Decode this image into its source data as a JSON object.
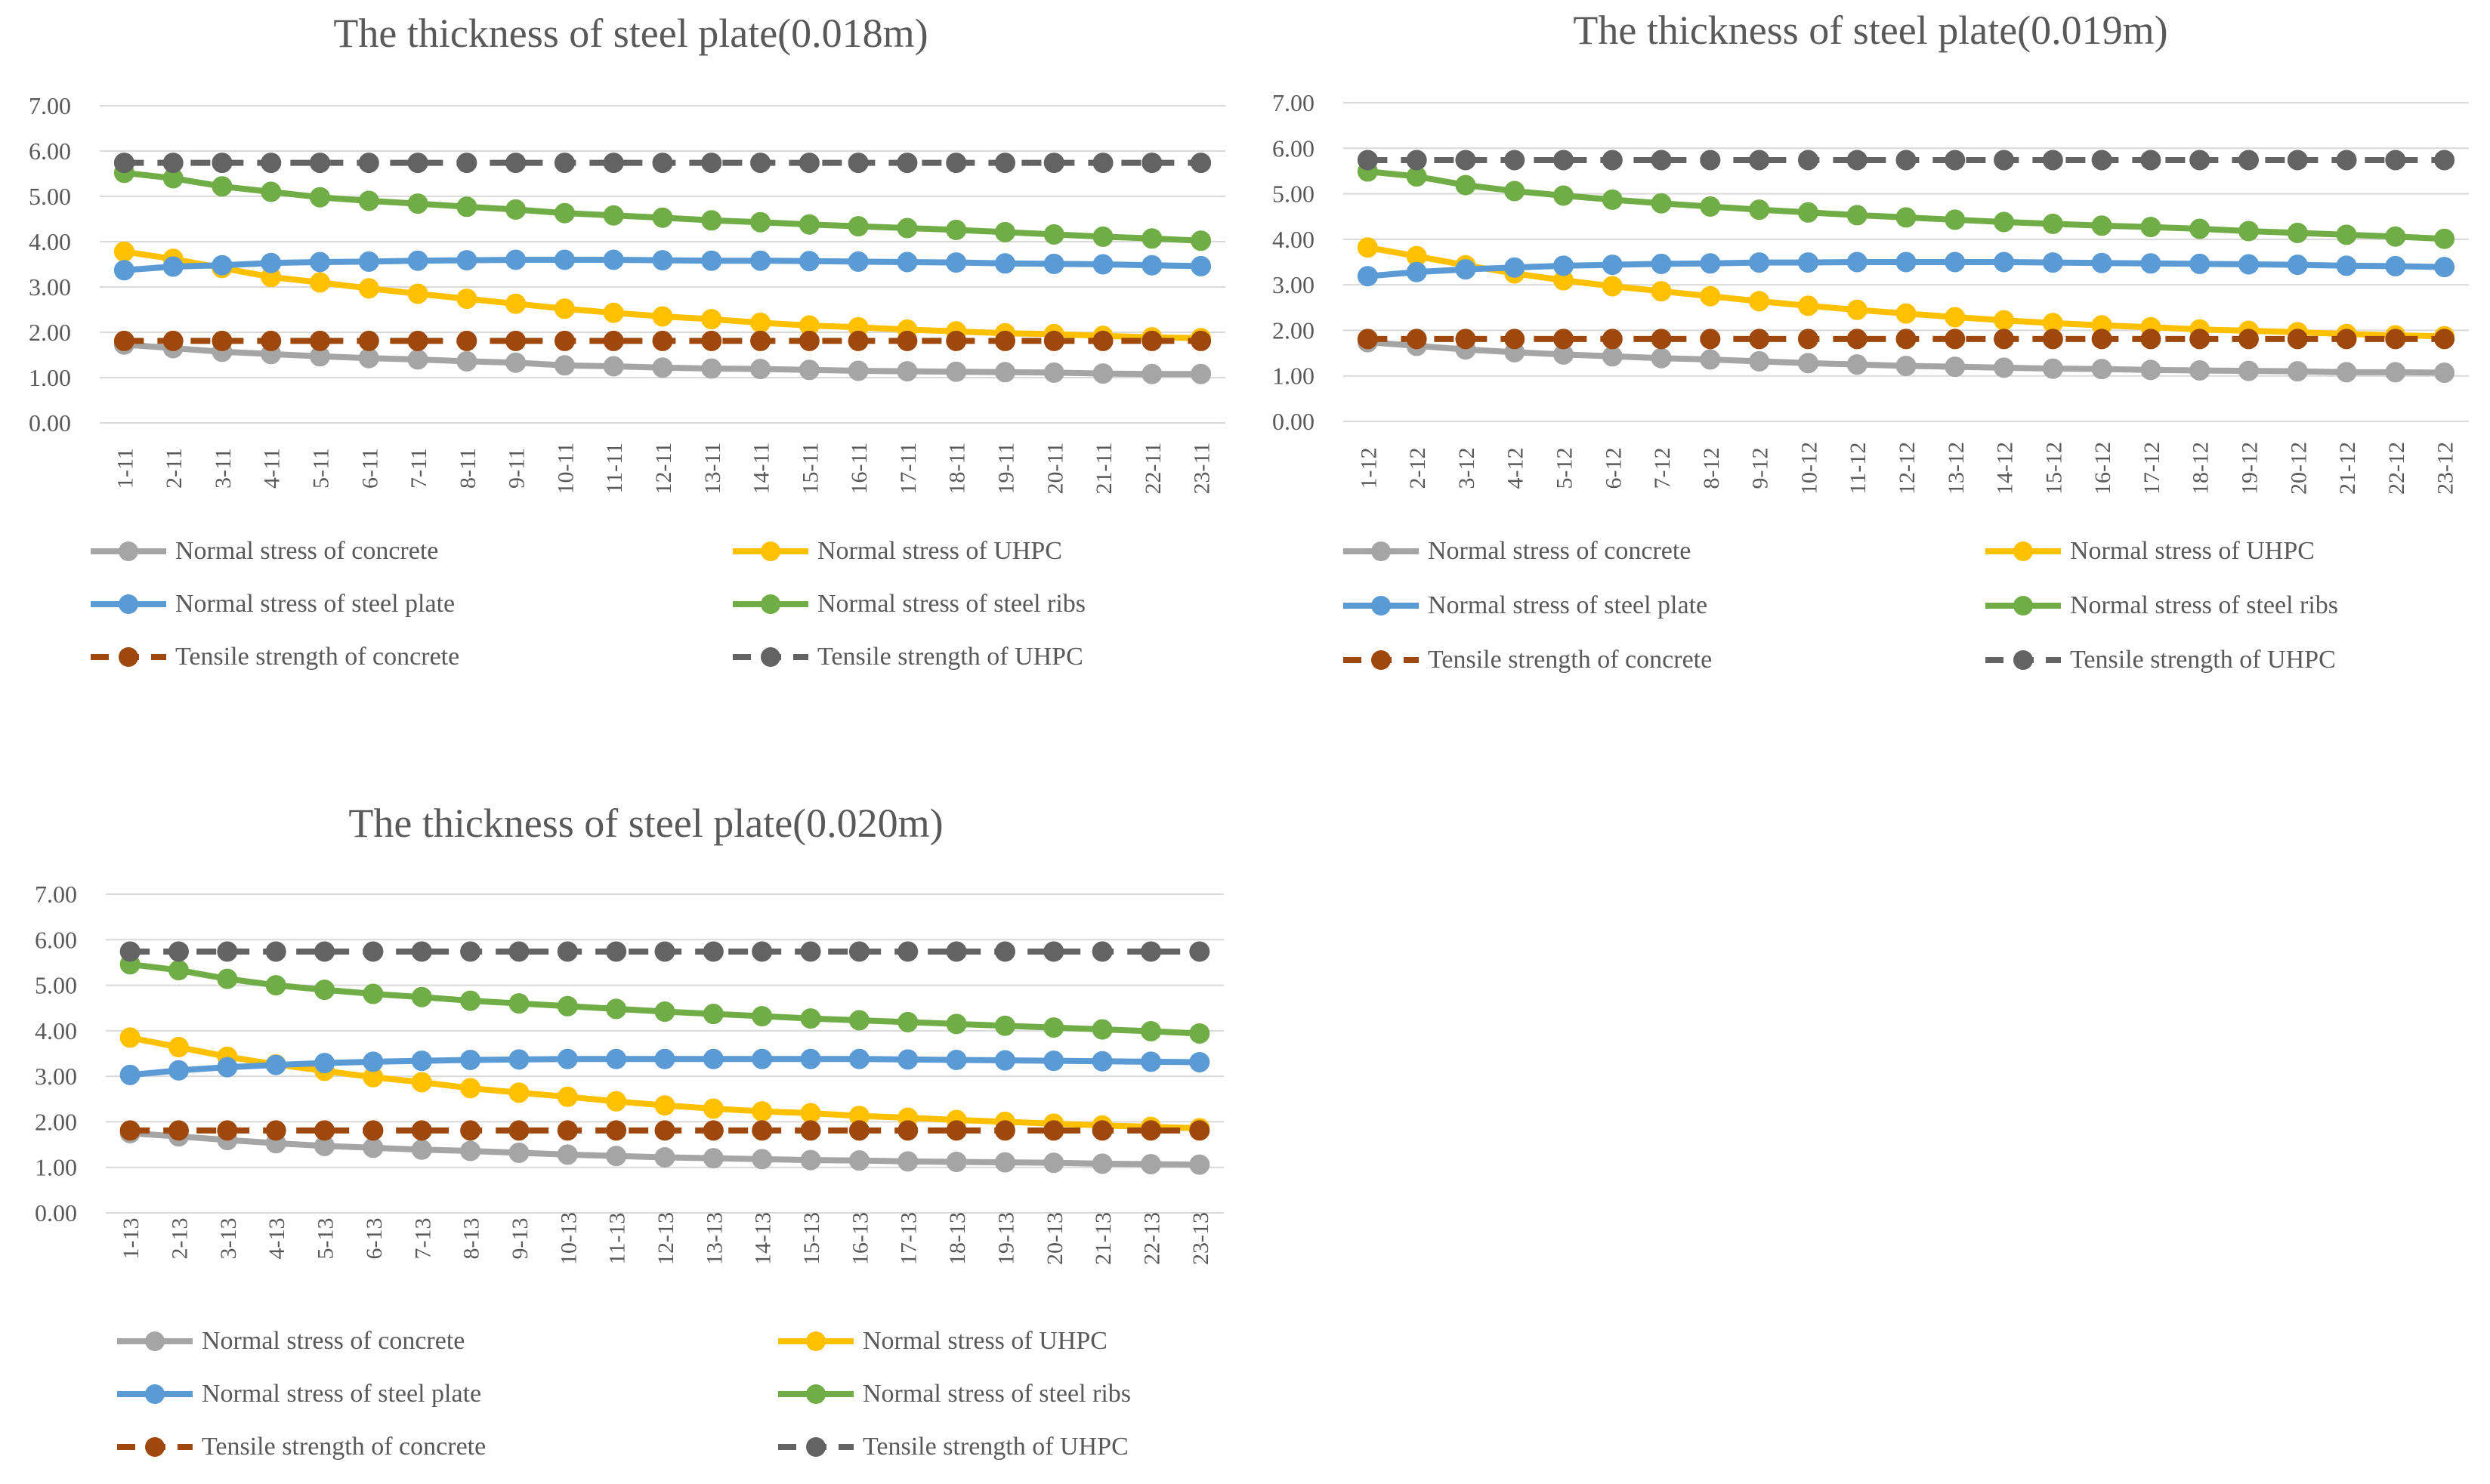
{
  "chart_data": [
    {
      "type": "line",
      "title": "The thickness of steel plate(0.018m)",
      "xlabel": "",
      "ylabel": "",
      "ylim": [
        0,
        7
      ],
      "yticks": [
        "0.00",
        "1.00",
        "2.00",
        "3.00",
        "4.00",
        "5.00",
        "6.00",
        "7.00"
      ],
      "categories": [
        "1-11",
        "2-11",
        "3-11",
        "4-11",
        "5-11",
        "6-11",
        "7-11",
        "8-11",
        "9-11",
        "10-11",
        "11-11",
        "12-11",
        "13-11",
        "14-11",
        "15-11",
        "16-11",
        "17-11",
        "18-11",
        "19-11",
        "20-11",
        "21-11",
        "22-11",
        "23-11"
      ],
      "series": [
        {
          "name": "Normal stress of concrete",
          "color": "#A5A5A5",
          "dash": false,
          "values": [
            1.73,
            1.65,
            1.57,
            1.52,
            1.47,
            1.43,
            1.4,
            1.36,
            1.33,
            1.27,
            1.25,
            1.22,
            1.2,
            1.19,
            1.17,
            1.15,
            1.14,
            1.13,
            1.12,
            1.11,
            1.09,
            1.08,
            1.08
          ]
        },
        {
          "name": "Normal stress of UHPC",
          "color": "#FFC000",
          "dash": false,
          "values": [
            3.78,
            3.62,
            3.42,
            3.22,
            3.1,
            2.97,
            2.85,
            2.74,
            2.63,
            2.52,
            2.43,
            2.35,
            2.29,
            2.21,
            2.15,
            2.11,
            2.06,
            2.02,
            1.98,
            1.96,
            1.92,
            1.89,
            1.87
          ]
        },
        {
          "name": "Normal stress of steel plate",
          "color": "#5B9BD5",
          "dash": false,
          "values": [
            3.37,
            3.45,
            3.48,
            3.53,
            3.55,
            3.56,
            3.58,
            3.59,
            3.6,
            3.6,
            3.6,
            3.59,
            3.58,
            3.58,
            3.57,
            3.56,
            3.55,
            3.54,
            3.52,
            3.51,
            3.5,
            3.48,
            3.46
          ]
        },
        {
          "name": "Normal stress of steel ribs",
          "color": "#70AD47",
          "dash": false,
          "values": [
            5.52,
            5.4,
            5.22,
            5.1,
            4.98,
            4.9,
            4.84,
            4.77,
            4.71,
            4.63,
            4.58,
            4.53,
            4.47,
            4.43,
            4.38,
            4.34,
            4.3,
            4.26,
            4.21,
            4.16,
            4.11,
            4.07,
            4.02
          ]
        },
        {
          "name": "Tensile strength of concrete",
          "color": "#9E480E",
          "dash": true,
          "values": [
            1.81,
            1.81,
            1.81,
            1.81,
            1.81,
            1.81,
            1.81,
            1.81,
            1.81,
            1.81,
            1.81,
            1.81,
            1.81,
            1.81,
            1.81,
            1.81,
            1.81,
            1.81,
            1.81,
            1.81,
            1.81,
            1.81,
            1.81
          ]
        },
        {
          "name": "Tensile strength of UHPC",
          "color": "#636363",
          "dash": true,
          "values": [
            5.74,
            5.74,
            5.74,
            5.74,
            5.74,
            5.74,
            5.74,
            5.74,
            5.74,
            5.74,
            5.74,
            5.74,
            5.74,
            5.74,
            5.74,
            5.74,
            5.74,
            5.74,
            5.74,
            5.74,
            5.74,
            5.74,
            5.74
          ]
        }
      ]
    },
    {
      "type": "line",
      "title": "The thickness of steel plate(0.019m)",
      "xlabel": "",
      "ylabel": "",
      "ylim": [
        0,
        7
      ],
      "yticks": [
        "0.00",
        "1.00",
        "2.00",
        "3.00",
        "4.00",
        "5.00",
        "6.00",
        "7.00"
      ],
      "categories": [
        "1-12",
        "2-12",
        "3-12",
        "4-12",
        "5-12",
        "6-12",
        "7-12",
        "8-12",
        "9-12",
        "10-12",
        "11-12",
        "12-12",
        "13-12",
        "14-12",
        "15-12",
        "16-12",
        "17-12",
        "18-12",
        "19-12",
        "20-12",
        "21-12",
        "22-12",
        "23-12"
      ],
      "series": [
        {
          "name": "Normal stress of concrete",
          "color": "#A5A5A5",
          "dash": false,
          "values": [
            1.74,
            1.66,
            1.58,
            1.52,
            1.47,
            1.43,
            1.39,
            1.36,
            1.32,
            1.28,
            1.25,
            1.22,
            1.2,
            1.18,
            1.16,
            1.15,
            1.13,
            1.12,
            1.11,
            1.1,
            1.08,
            1.08,
            1.07
          ]
        },
        {
          "name": "Normal stress of UHPC",
          "color": "#FFC000",
          "dash": false,
          "values": [
            3.82,
            3.63,
            3.43,
            3.25,
            3.1,
            2.97,
            2.86,
            2.75,
            2.64,
            2.54,
            2.45,
            2.37,
            2.29,
            2.22,
            2.16,
            2.11,
            2.07,
            2.02,
            1.99,
            1.96,
            1.92,
            1.89,
            1.87
          ]
        },
        {
          "name": "Normal stress of steel plate",
          "color": "#5B9BD5",
          "dash": false,
          "values": [
            3.19,
            3.28,
            3.34,
            3.38,
            3.42,
            3.44,
            3.46,
            3.47,
            3.49,
            3.49,
            3.5,
            3.5,
            3.5,
            3.5,
            3.49,
            3.48,
            3.47,
            3.46,
            3.45,
            3.44,
            3.42,
            3.41,
            3.39
          ]
        },
        {
          "name": "Normal stress of steel ribs",
          "color": "#70AD47",
          "dash": false,
          "values": [
            5.49,
            5.38,
            5.19,
            5.06,
            4.96,
            4.87,
            4.79,
            4.72,
            4.65,
            4.59,
            4.53,
            4.48,
            4.43,
            4.38,
            4.34,
            4.3,
            4.27,
            4.23,
            4.18,
            4.14,
            4.1,
            4.06,
            4.01
          ]
        },
        {
          "name": "Tensile strength of concrete",
          "color": "#9E480E",
          "dash": true,
          "values": [
            1.81,
            1.81,
            1.81,
            1.81,
            1.81,
            1.81,
            1.81,
            1.81,
            1.81,
            1.81,
            1.81,
            1.81,
            1.81,
            1.81,
            1.81,
            1.81,
            1.81,
            1.81,
            1.81,
            1.81,
            1.81,
            1.81,
            1.81
          ]
        },
        {
          "name": "Tensile strength of UHPC",
          "color": "#636363",
          "dash": true,
          "values": [
            5.74,
            5.74,
            5.74,
            5.74,
            5.74,
            5.74,
            5.74,
            5.74,
            5.74,
            5.74,
            5.74,
            5.74,
            5.74,
            5.74,
            5.74,
            5.74,
            5.74,
            5.74,
            5.74,
            5.74,
            5.74,
            5.74,
            5.74
          ]
        }
      ]
    },
    {
      "type": "line",
      "title": "The thickness of steel plate(0.020m)",
      "xlabel": "",
      "ylabel": "",
      "ylim": [
        0,
        7
      ],
      "yticks": [
        "0.00",
        "1.00",
        "2.00",
        "3.00",
        "4.00",
        "5.00",
        "6.00",
        "7.00"
      ],
      "categories": [
        "1-13",
        "2-13",
        "3-13",
        "4-13",
        "5-13",
        "6-13",
        "7-13",
        "8-13",
        "9-13",
        "10-13",
        "11-13",
        "12-13",
        "13-13",
        "14-13",
        "15-13",
        "16-13",
        "17-13",
        "18-13",
        "19-13",
        "20-13",
        "21-13",
        "22-13",
        "23-13"
      ],
      "series": [
        {
          "name": "Normal stress of concrete",
          "color": "#A5A5A5",
          "dash": false,
          "values": [
            1.75,
            1.68,
            1.6,
            1.53,
            1.47,
            1.43,
            1.39,
            1.36,
            1.32,
            1.28,
            1.25,
            1.22,
            1.2,
            1.18,
            1.16,
            1.15,
            1.13,
            1.12,
            1.11,
            1.1,
            1.08,
            1.07,
            1.06
          ]
        },
        {
          "name": "Normal stress of UHPC",
          "color": "#FFC000",
          "dash": false,
          "values": [
            3.85,
            3.64,
            3.43,
            3.26,
            3.12,
            2.98,
            2.87,
            2.74,
            2.64,
            2.55,
            2.45,
            2.36,
            2.29,
            2.23,
            2.19,
            2.13,
            2.09,
            2.04,
            2.0,
            1.96,
            1.92,
            1.89,
            1.86
          ]
        },
        {
          "name": "Normal stress of steel plate",
          "color": "#5B9BD5",
          "dash": false,
          "values": [
            3.03,
            3.13,
            3.2,
            3.25,
            3.29,
            3.32,
            3.34,
            3.36,
            3.37,
            3.38,
            3.38,
            3.38,
            3.38,
            3.38,
            3.38,
            3.38,
            3.37,
            3.36,
            3.35,
            3.34,
            3.33,
            3.32,
            3.31
          ]
        },
        {
          "name": "Normal stress of steel ribs",
          "color": "#70AD47",
          "dash": false,
          "values": [
            5.46,
            5.33,
            5.14,
            5.0,
            4.9,
            4.81,
            4.74,
            4.66,
            4.6,
            4.54,
            4.48,
            4.42,
            4.37,
            4.32,
            4.27,
            4.23,
            4.19,
            4.15,
            4.11,
            4.07,
            4.03,
            3.99,
            3.94
          ]
        },
        {
          "name": "Tensile strength of concrete",
          "color": "#9E480E",
          "dash": true,
          "values": [
            1.81,
            1.81,
            1.81,
            1.81,
            1.81,
            1.81,
            1.81,
            1.81,
            1.81,
            1.81,
            1.81,
            1.81,
            1.81,
            1.81,
            1.81,
            1.81,
            1.81,
            1.81,
            1.81,
            1.81,
            1.81,
            1.81,
            1.81
          ]
        },
        {
          "name": "Tensile strength of UHPC",
          "color": "#636363",
          "dash": true,
          "values": [
            5.74,
            5.74,
            5.74,
            5.74,
            5.74,
            5.74,
            5.74,
            5.74,
            5.74,
            5.74,
            5.74,
            5.74,
            5.74,
            5.74,
            5.74,
            5.74,
            5.74,
            5.74,
            5.74,
            5.74,
            5.74,
            5.74,
            5.74
          ]
        }
      ]
    }
  ]
}
